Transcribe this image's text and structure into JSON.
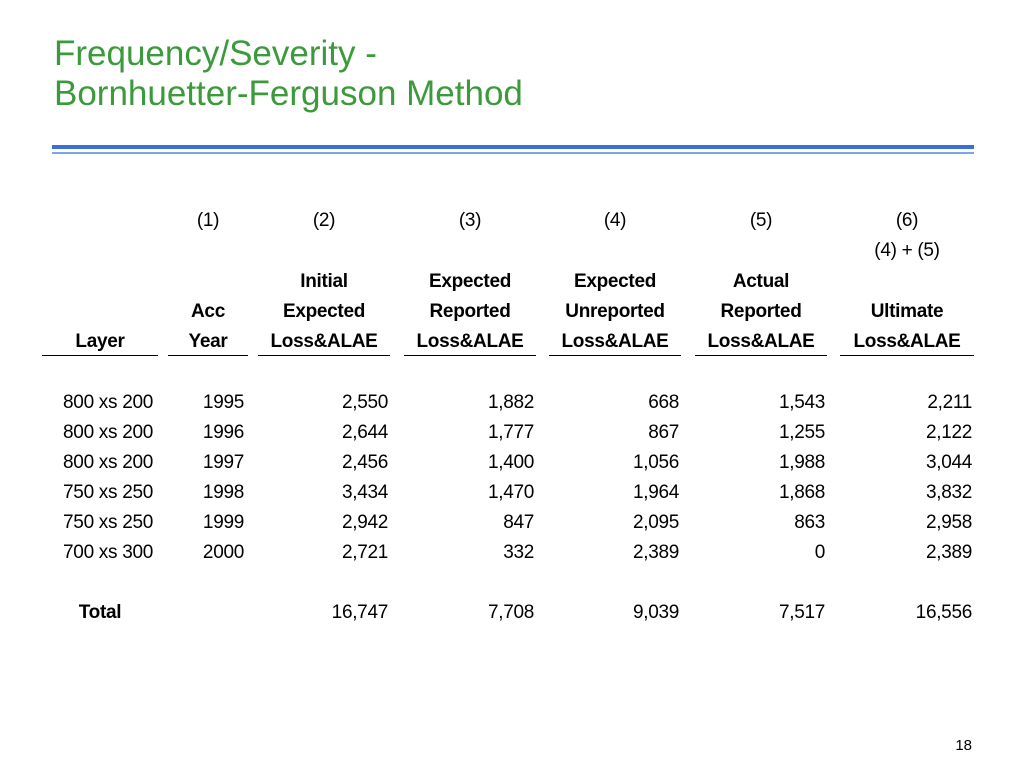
{
  "slide": {
    "title_line1": "Frequency/Severity -",
    "title_line2": "Bornhuetter-Ferguson Method",
    "page_number": "18",
    "colors": {
      "title": "#3c9a3c",
      "rule": "#3a6fd8"
    }
  },
  "table": {
    "col_numbers": [
      "(1)",
      "(2)",
      "(3)",
      "(4)",
      "(5)",
      "(6)"
    ],
    "formula": "(4) + (5)",
    "headers": {
      "layer": [
        "Layer"
      ],
      "acc_year": [
        "Acc",
        "Year"
      ],
      "initial_expected": [
        "Initial",
        "Expected",
        "Loss&ALAE"
      ],
      "expected_reported": [
        "Expected",
        "Reported",
        "Loss&ALAE"
      ],
      "expected_unreported": [
        "Expected",
        "Unreported",
        "Loss&ALAE"
      ],
      "actual_reported": [
        "Actual",
        "Reported",
        "Loss&ALAE"
      ],
      "ultimate": [
        "Ultimate",
        "Loss&ALAE"
      ]
    },
    "rows": [
      [
        "800 xs 200",
        "1995",
        "2,550",
        "1,882",
        "668",
        "1,543",
        "2,211"
      ],
      [
        "800 xs 200",
        "1996",
        "2,644",
        "1,777",
        "867",
        "1,255",
        "2,122"
      ],
      [
        "800 xs 200",
        "1997",
        "2,456",
        "1,400",
        "1,056",
        "1,988",
        "3,044"
      ],
      [
        "750 xs 250",
        "1998",
        "3,434",
        "1,470",
        "1,964",
        "1,868",
        "3,832"
      ],
      [
        "750 xs 250",
        "1999",
        "2,942",
        "847",
        "2,095",
        "863",
        "2,958"
      ],
      [
        "700 xs 300",
        "2000",
        "2,721",
        "332",
        "2,389",
        "0",
        "2,389"
      ]
    ],
    "total": [
      "Total",
      "",
      "16,747",
      "7,708",
      "9,039",
      "7,517",
      "16,556"
    ]
  }
}
